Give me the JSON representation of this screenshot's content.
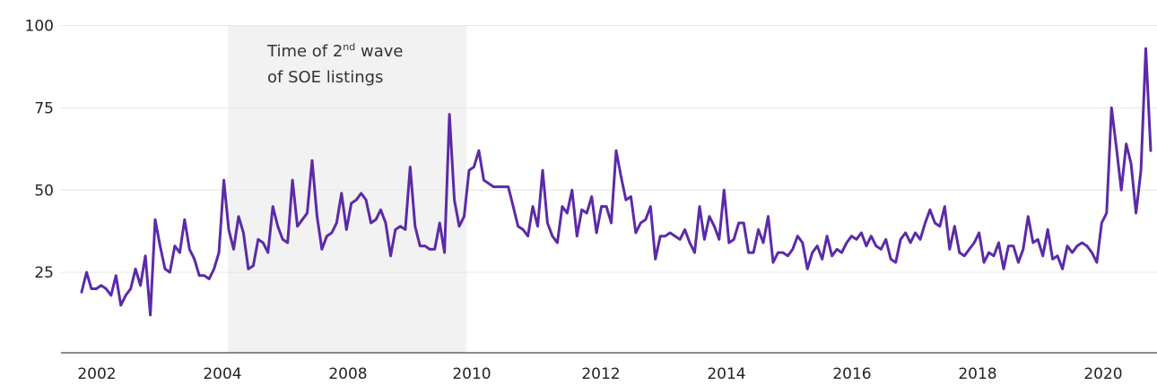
{
  "chart_data": {
    "type": "line",
    "title": "",
    "xlabel": "",
    "ylabel": "",
    "y_ticks": [
      100,
      75,
      50,
      25
    ],
    "x_ticks": [
      2002,
      2004,
      2008,
      2010,
      2012,
      2014,
      2016,
      2018,
      2020
    ],
    "ylim": [
      0,
      100
    ],
    "grid": "horizontal",
    "line_color": "#5B2AA8",
    "shade_color": "#F2F2F2",
    "shaded_region": {
      "label_line1": "Time of 2",
      "label_sup": "nd",
      "label_line1_end": " wave",
      "label_line2": "of SOE listings"
    },
    "series": [
      {
        "values": [
          19,
          25,
          20,
          20,
          21,
          20,
          18,
          24,
          15,
          18,
          20,
          26,
          21,
          30,
          12,
          41,
          33,
          26,
          25,
          33,
          31,
          41,
          32,
          29,
          24,
          24,
          23,
          26,
          31,
          53,
          38,
          32,
          42,
          37,
          26,
          27,
          35,
          34,
          31,
          45,
          39,
          35,
          34,
          53,
          39,
          41,
          43,
          59,
          42,
          32,
          36,
          37,
          40,
          49,
          38,
          46,
          47,
          49,
          47,
          40,
          41,
          44,
          40,
          30,
          38,
          39,
          38,
          57,
          39,
          33,
          33,
          32,
          32,
          40,
          31,
          73,
          47,
          39,
          42,
          56,
          57,
          62,
          53,
          52,
          51,
          51,
          51,
          51,
          45,
          39,
          38,
          36,
          45,
          39,
          56,
          40,
          36,
          34,
          45,
          43,
          50,
          36,
          44,
          43,
          48,
          37,
          45,
          45,
          40,
          62,
          54,
          47,
          48,
          37,
          40,
          41,
          45,
          29,
          36,
          36,
          37,
          36,
          35,
          38,
          34,
          31,
          45,
          35,
          42,
          39,
          35,
          50,
          34,
          35,
          40,
          40,
          31,
          31,
          38,
          34,
          42,
          28,
          31,
          31,
          30,
          32,
          36,
          34,
          26,
          31,
          33,
          29,
          36,
          30,
          32,
          31,
          34,
          36,
          35,
          37,
          33,
          36,
          33,
          32,
          35,
          29,
          28,
          35,
          37,
          34,
          37,
          35,
          40,
          44,
          40,
          39,
          45,
          32,
          39,
          31,
          30,
          32,
          34,
          37,
          28,
          31,
          30,
          34,
          26,
          33,
          33,
          28,
          32,
          42,
          34,
          35,
          30,
          38,
          29,
          30,
          26,
          33,
          31,
          33,
          34,
          33,
          31,
          28,
          40,
          43,
          75,
          63,
          50,
          64,
          58,
          43,
          56,
          93,
          62
        ]
      }
    ]
  }
}
